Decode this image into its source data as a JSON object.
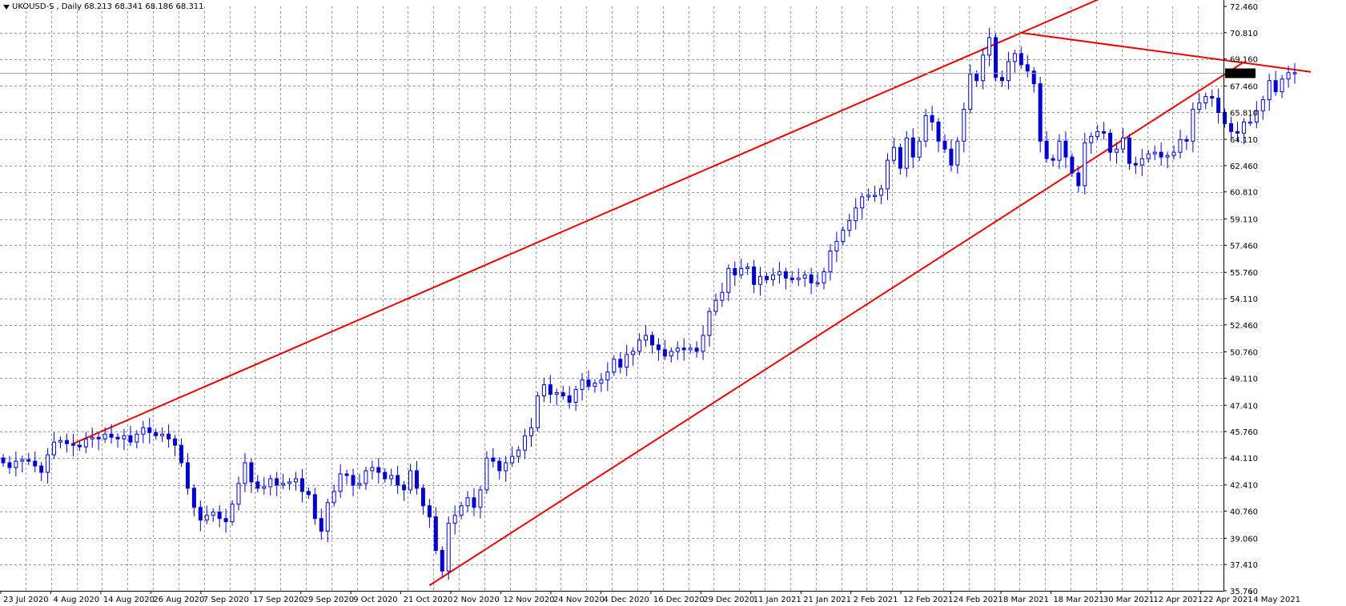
{
  "header": {
    "symbol": "UKOUSD-S",
    "timeframe": "Daily",
    "ohlc": "68.213 68.341 68.186 68.311"
  },
  "colors": {
    "background": "#ffffff",
    "grid": "#8c9aa6",
    "candle": "#0000cc",
    "trendline": "#ee0000",
    "price_line": "#9aa8b2",
    "price_label_bg": "#000000",
    "price_label_text": "#ffffff"
  },
  "icons": {
    "header": "dropdown-triangle-icon"
  },
  "chart_data": {
    "type": "candlestick",
    "symbol": "UKOUSD-S",
    "timeframe": "Daily",
    "current_price": 68.311,
    "ylim": [
      35.76,
      72.46
    ],
    "y_ticks": [
      "72.460",
      "70.810",
      "69.160",
      "67.460",
      "65.810",
      "64.110",
      "62.460",
      "60.810",
      "59.110",
      "57.460",
      "55.760",
      "54.110",
      "52.460",
      "50.760",
      "49.110",
      "47.410",
      "45.760",
      "44.110",
      "42.410",
      "40.760",
      "39.060",
      "37.410",
      "35.760"
    ],
    "x_ticks": [
      "23 Jul 2020",
      "4 Aug 2020",
      "14 Aug 2020",
      "26 Aug 2020",
      "7 Sep 2020",
      "17 Sep 2020",
      "29 Sep 2020",
      "9 Oct 2020",
      "21 Oct 2020",
      "2 Nov 2020",
      "12 Nov 2020",
      "24 Nov 2020",
      "4 Dec 2020",
      "16 Dec 2020",
      "29 Dec 2020",
      "11 Jan 2021",
      "21 Jan 2021",
      "2 Feb 2021",
      "12 Feb 2021",
      "24 Feb 2021",
      "8 Mar 2021",
      "18 Mar 2021",
      "30 Mar 2021",
      "12 Apr 2021",
      "22 Apr 2021",
      "4 May 2021"
    ],
    "grid": true,
    "closes": [
      43.8,
      43.5,
      43.9,
      44.0,
      43.9,
      43.6,
      43.2,
      44.3,
      45.1,
      45.2,
      45.0,
      44.9,
      44.8,
      45.3,
      45.4,
      45.3,
      45.6,
      45.4,
      45.3,
      45.5,
      45.1,
      45.6,
      46.0,
      45.7,
      45.5,
      45.6,
      45.3,
      44.9,
      43.8,
      42.2,
      41.0,
      40.2,
      40.5,
      40.7,
      40.3,
      40.1,
      41.2,
      42.5,
      43.8,
      42.6,
      42.2,
      42.3,
      42.8,
      42.4,
      42.5,
      42.6,
      42.8,
      42.0,
      41.8,
      40.3,
      39.5,
      41.3,
      42.0,
      43.1,
      43.0,
      42.4,
      42.5,
      43.3,
      43.5,
      43.2,
      42.8,
      43.0,
      42.4,
      42.1,
      43.3,
      42.2,
      41.1,
      40.4,
      38.3,
      37.0,
      40.0,
      40.5,
      41.1,
      41.6,
      41.0,
      42.1,
      44.1,
      43.9,
      43.3,
      43.8,
      44.2,
      44.6,
      45.5,
      46.0,
      48.0,
      48.7,
      48.1,
      48.2,
      48.0,
      47.6,
      48.4,
      49.0,
      48.6,
      48.8,
      49.0,
      49.5,
      50.3,
      49.8,
      50.6,
      50.8,
      51.5,
      51.8,
      51.2,
      50.9,
      50.5,
      50.8,
      51.0,
      50.9,
      51.0,
      50.8,
      51.8,
      53.3,
      54.0,
      54.5,
      56.0,
      55.6,
      56.0,
      56.1,
      55.0,
      55.5,
      55.3,
      55.6,
      55.8,
      55.4,
      55.3,
      55.4,
      55.6,
      55.1,
      55.1,
      55.8,
      57.1,
      57.7,
      58.4,
      59.0,
      59.8,
      60.5,
      60.6,
      60.6,
      61.0,
      62.8,
      63.6,
      62.3,
      64.2,
      63.0,
      64.0,
      65.6,
      65.2,
      64.0,
      63.5,
      62.5,
      64.0,
      66.0,
      68.2,
      67.8,
      69.4,
      70.5,
      68.0,
      67.8,
      69.0,
      69.5,
      68.8,
      68.4,
      67.6,
      64.0,
      62.9,
      62.8,
      64.0,
      63.0,
      62.0,
      61.2,
      63.9,
      64.3,
      64.6,
      64.5,
      63.3,
      63.5,
      64.2,
      62.6,
      62.5,
      62.9,
      63.2,
      63.3,
      63.0,
      63.1,
      63.3,
      64.1,
      64.0,
      66.0,
      66.4,
      66.8,
      66.7,
      65.8,
      65.1,
      64.6,
      64.5,
      65.2,
      65.2,
      65.9,
      66.6,
      67.8,
      67.1,
      67.9,
      68.3,
      68.3
    ]
  }
}
